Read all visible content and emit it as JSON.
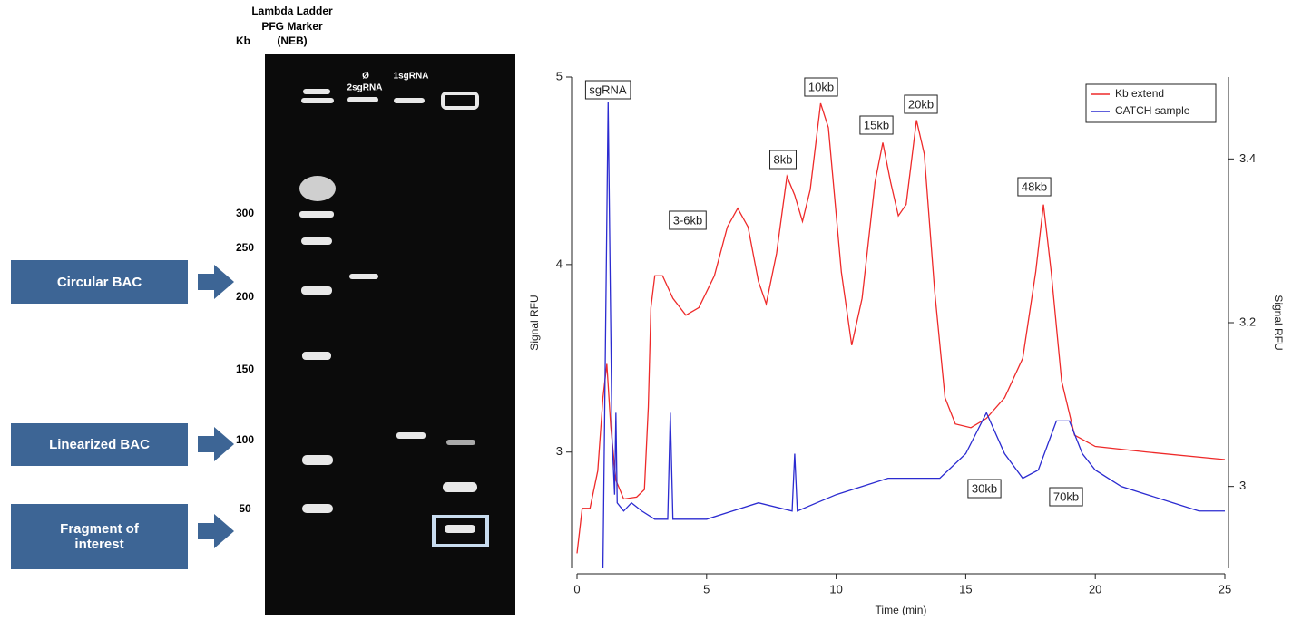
{
  "gel": {
    "header": [
      "Lambda Ladder",
      "PFG Marker",
      "(NEB)"
    ],
    "unit": "Kb",
    "size_labels": [
      300,
      250,
      200,
      150,
      100,
      50
    ],
    "lanes": [
      "Ø",
      "2sgRNA",
      "1sgRNA"
    ],
    "callouts": [
      "Circular BAC",
      "Linearized BAC",
      "Fragment of interest"
    ]
  },
  "chart_data": {
    "type": "line",
    "xlabel": "Time (min)",
    "ylabel": "Signal RFU",
    "y2label": "Signal RFU",
    "xlim": [
      0,
      25
    ],
    "xticks": [
      0,
      5,
      10,
      15,
      20,
      25
    ],
    "ylim": [
      2.38,
      5.0
    ],
    "yticks": [
      3,
      4,
      5
    ],
    "y2lim": [
      2.9,
      3.5
    ],
    "y2ticks": [
      3.0,
      3.2,
      3.4
    ],
    "legend": "upper right",
    "annotations": [
      "sgRNA",
      "3-6kb",
      "8kb",
      "10kb",
      "15kb",
      "20kb",
      "48kb",
      "30kb",
      "70kb"
    ],
    "series": [
      {
        "name": "Kb extend",
        "color": "#ee2a2a",
        "x": [
          0.0,
          0.1,
          0.2,
          0.5,
          0.8,
          1.0,
          1.15,
          1.3,
          1.5,
          1.8,
          2.3,
          2.6,
          2.75,
          2.85,
          3.0,
          3.3,
          3.7,
          4.2,
          4.7,
          5.3,
          5.8,
          6.2,
          6.6,
          7.0,
          7.3,
          7.7,
          8.1,
          8.4,
          8.7,
          9.0,
          9.4,
          9.7,
          10.2,
          10.6,
          11.0,
          11.5,
          11.8,
          12.1,
          12.4,
          12.7,
          13.1,
          13.4,
          13.8,
          14.2,
          14.6,
          15.2,
          15.8,
          16.5,
          17.2,
          17.7,
          18.0,
          18.3,
          18.7,
          19.2,
          20.0,
          22.0,
          25.0
        ],
        "values": [
          2.46,
          2.58,
          2.7,
          2.7,
          2.9,
          3.29,
          3.47,
          3.14,
          2.85,
          2.75,
          2.76,
          2.8,
          3.24,
          3.77,
          3.94,
          3.94,
          3.82,
          3.73,
          3.77,
          3.94,
          4.2,
          4.3,
          4.2,
          3.91,
          3.79,
          4.06,
          4.47,
          4.37,
          4.23,
          4.4,
          4.86,
          4.73,
          3.96,
          3.57,
          3.82,
          4.44,
          4.65,
          4.44,
          4.26,
          4.32,
          4.77,
          4.59,
          3.86,
          3.29,
          3.15,
          3.13,
          3.18,
          3.29,
          3.5,
          3.96,
          4.32,
          3.96,
          3.38,
          3.09,
          3.03,
          3.0,
          2.96
        ]
      },
      {
        "name": "CATCH sample",
        "color": "#2b2bd0",
        "axis": "y2",
        "x": [
          1.0,
          1.2,
          1.35,
          1.45,
          1.5,
          1.55,
          1.8,
          2.1,
          2.5,
          3.0,
          3.5,
          3.6,
          3.7,
          5.0,
          6.0,
          7.0,
          8.3,
          8.4,
          8.5,
          10.0,
          12.0,
          14.0,
          15.0,
          15.8,
          16.5,
          17.2,
          17.8,
          18.5,
          19.0,
          19.5,
          20.0,
          21.0,
          22.0,
          23.0,
          24.0,
          25.0
        ],
        "values": [
          2.9,
          3.469,
          3.06,
          2.99,
          3.09,
          2.98,
          2.97,
          2.98,
          2.97,
          2.96,
          2.96,
          3.09,
          2.96,
          2.96,
          2.97,
          2.98,
          2.97,
          3.04,
          2.97,
          2.99,
          3.01,
          3.01,
          3.04,
          3.09,
          3.04,
          3.01,
          3.02,
          3.08,
          3.08,
          3.04,
          3.02,
          3.0,
          2.99,
          2.98,
          2.97,
          2.97
        ]
      }
    ]
  }
}
